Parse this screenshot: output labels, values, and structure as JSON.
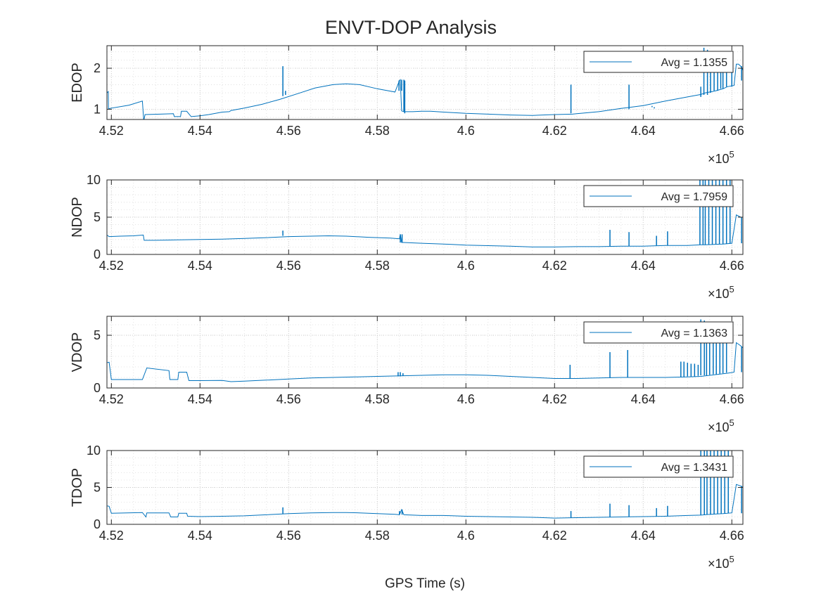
{
  "figure": {
    "title": "ENVT-DOP Analysis",
    "xlabel": "GPS Time (s)",
    "exponent_base": "×10",
    "exponent_power": "5"
  },
  "colors": {
    "series": "#0072BD",
    "axes": "#262626",
    "grid": "#dcdcdc",
    "background": "#ffffff"
  },
  "chart_data": [
    {
      "type": "line",
      "ylabel": "EDOP",
      "legend": "Avg = 1.1355",
      "legend_position": "top-right",
      "grid": true,
      "minor_grid": true,
      "xlim": [
        451900,
        466250
      ],
      "ylim": [
        0.75,
        2.55
      ],
      "xticks": [
        452000,
        454000,
        456000,
        458000,
        460000,
        462000,
        464000,
        466000
      ],
      "xtick_labels": [
        "4.52",
        "4.54",
        "4.56",
        "4.58",
        "4.6",
        "4.62",
        "4.64",
        "4.66"
      ],
      "yticks": [
        1,
        2
      ],
      "ytick_labels": [
        "1",
        "2"
      ],
      "series": [
        {
          "x": [
            451900,
            451930,
            451935,
            451960,
            452400,
            452700,
            452730,
            452760,
            453100,
            453400,
            453420,
            453560,
            453580,
            453700,
            453800,
            454000,
            454200,
            454500,
            454660,
            454700,
            455000,
            455400,
            455800,
            456200,
            456600,
            457000,
            457300,
            457600,
            458000,
            458400,
            458500,
            458520,
            458550,
            458600,
            458800,
            459000,
            459200,
            459500,
            460000,
            460500,
            461000,
            461500,
            462000,
            462400,
            462500,
            463000,
            463500,
            464000,
            464500,
            465000,
            465300,
            465400,
            465600,
            465800,
            465900,
            466050,
            466100,
            466150,
            466200,
            466250
          ],
          "y": [
            1.4,
            1.43,
            1.0,
            1.02,
            1.1,
            1.2,
            0.72,
            0.87,
            0.88,
            0.89,
            0.82,
            0.82,
            0.95,
            0.95,
            0.82,
            0.84,
            0.87,
            0.93,
            0.94,
            0.97,
            1.03,
            1.12,
            1.24,
            1.38,
            1.52,
            1.6,
            1.62,
            1.6,
            1.5,
            1.42,
            1.7,
            1.72,
            0.96,
            0.94,
            0.94,
            0.95,
            0.95,
            0.93,
            0.9,
            0.88,
            0.86,
            0.85,
            0.87,
            0.88,
            0.89,
            0.94,
            1.02,
            1.09,
            1.2,
            1.3,
            1.36,
            1.4,
            1.44,
            1.5,
            1.55,
            1.58,
            2.1,
            2.1,
            2.05,
            1.95
          ]
        }
      ],
      "spikes": [
        [
          455870,
          1.32,
          2.05
        ],
        [
          455930,
          1.35,
          1.45
        ],
        [
          458490,
          1.45,
          1.7
        ],
        [
          458550,
          1.45,
          1.72
        ],
        [
          458600,
          0.95,
          1.72
        ],
        [
          458620,
          0.9,
          1.7
        ],
        [
          462370,
          0.9,
          1.6
        ],
        [
          463680,
          1.0,
          1.6
        ],
        [
          464200,
          1.05,
          1.08
        ],
        [
          464250,
          1.05,
          1.02
        ],
        [
          465300,
          1.3,
          1.55
        ],
        [
          465370,
          1.35,
          2.5
        ],
        [
          465450,
          1.35,
          2.45
        ],
        [
          465520,
          1.4,
          2.1
        ],
        [
          465600,
          1.45,
          2.3
        ],
        [
          465680,
          1.45,
          2.1
        ],
        [
          465750,
          1.5,
          2.2
        ],
        [
          465800,
          1.5,
          2.1
        ],
        [
          465880,
          1.55,
          2.15
        ],
        [
          466000,
          1.55,
          2.1
        ],
        [
          466220,
          1.7,
          2.05
        ]
      ]
    },
    {
      "type": "line",
      "ylabel": "NDOP",
      "legend": "Avg = 1.7959",
      "legend_position": "top-right",
      "grid": true,
      "minor_grid": true,
      "xlim": [
        451900,
        466250
      ],
      "ylim": [
        0,
        10
      ],
      "xticks": [
        452000,
        454000,
        456000,
        458000,
        460000,
        462000,
        464000,
        466000
      ],
      "xtick_labels": [
        "4.52",
        "4.54",
        "4.56",
        "4.58",
        "4.6",
        "4.62",
        "4.64",
        "4.66"
      ],
      "yticks": [
        0,
        5,
        10
      ],
      "ytick_labels": [
        "0",
        "5",
        "10"
      ],
      "series": [
        {
          "x": [
            451900,
            451950,
            452200,
            452500,
            452720,
            452740,
            453000,
            453500,
            454000,
            454500,
            455000,
            455500,
            456000,
            456500,
            456900,
            457300,
            457800,
            458300,
            458500,
            458520,
            458550,
            458600,
            459000,
            459500,
            460000,
            461000,
            461500,
            462000,
            462500,
            463000,
            463500,
            464000,
            464500,
            465000,
            465300,
            465400,
            465600,
            465800,
            466000,
            466100,
            466200,
            466250
          ],
          "y": [
            2.6,
            2.4,
            2.45,
            2.5,
            2.6,
            1.9,
            1.9,
            1.95,
            2.0,
            2.05,
            2.15,
            2.25,
            2.4,
            2.45,
            2.5,
            2.45,
            2.3,
            2.2,
            2.1,
            2.7,
            1.6,
            1.6,
            1.5,
            1.4,
            1.25,
            1.1,
            1.0,
            1.0,
            1.05,
            1.05,
            1.1,
            1.1,
            1.2,
            1.2,
            1.3,
            1.3,
            1.35,
            1.4,
            1.5,
            5.3,
            5.0,
            5.0
          ]
        }
      ],
      "spikes": [
        [
          455870,
          2.5,
          3.2
        ],
        [
          458520,
          1.6,
          2.7
        ],
        [
          458560,
          1.6,
          2.7
        ],
        [
          463250,
          1.05,
          3.3
        ],
        [
          463680,
          1.1,
          3.0
        ],
        [
          464300,
          1.2,
          2.5
        ],
        [
          464550,
          1.2,
          3.1
        ],
        [
          465280,
          1.3,
          10
        ],
        [
          465350,
          1.3,
          10
        ],
        [
          465400,
          1.3,
          10
        ],
        [
          465480,
          1.3,
          10
        ],
        [
          465560,
          1.35,
          10
        ],
        [
          465640,
          1.35,
          10
        ],
        [
          465720,
          1.4,
          10
        ],
        [
          465800,
          1.4,
          10
        ],
        [
          465880,
          1.45,
          10
        ],
        [
          465960,
          1.5,
          10
        ],
        [
          466220,
          1.5,
          5.0
        ]
      ]
    },
    {
      "type": "line",
      "ylabel": "VDOP",
      "legend": "Avg = 1.1363",
      "legend_position": "top-right",
      "grid": true,
      "minor_grid": true,
      "xlim": [
        451900,
        466250
      ],
      "ylim": [
        0,
        6.8
      ],
      "xticks": [
        452000,
        454000,
        456000,
        458000,
        460000,
        462000,
        464000,
        466000
      ],
      "xtick_labels": [
        "4.52",
        "4.54",
        "4.56",
        "4.58",
        "4.6",
        "4.62",
        "4.64",
        "4.66"
      ],
      "yticks": [
        0,
        5
      ],
      "ytick_labels": [
        "0",
        "5"
      ],
      "series": [
        {
          "x": [
            451900,
            451950,
            452000,
            452700,
            452800,
            453300,
            453320,
            453500,
            453520,
            453700,
            453750,
            453800,
            454000,
            454500,
            454700,
            455000,
            455500,
            456000,
            456500,
            457000,
            457500,
            458000,
            458500,
            459000,
            459500,
            460000,
            460500,
            461000,
            461500,
            462000,
            462500,
            463000,
            463500,
            464000,
            464500,
            465000,
            465300,
            465500,
            465700,
            465900,
            466050,
            466100,
            466200,
            466250
          ],
          "y": [
            2.4,
            2.45,
            0.8,
            0.8,
            1.9,
            1.65,
            0.8,
            0.8,
            1.5,
            1.5,
            0.7,
            0.7,
            0.7,
            0.72,
            0.6,
            0.65,
            0.75,
            0.85,
            0.95,
            1.0,
            1.05,
            1.1,
            1.15,
            1.2,
            1.25,
            1.25,
            1.2,
            1.1,
            1.0,
            0.9,
            0.9,
            0.95,
            1.0,
            1.0,
            1.0,
            1.05,
            1.1,
            1.2,
            1.3,
            1.4,
            1.5,
            4.3,
            4.0,
            3.8
          ]
        }
      ],
      "spikes": [
        [
          458470,
          1.1,
          1.5
        ],
        [
          458520,
          1.1,
          1.5
        ],
        [
          458580,
          1.15,
          1.4
        ],
        [
          462350,
          0.9,
          2.2
        ],
        [
          463250,
          0.95,
          3.4
        ],
        [
          463650,
          1.0,
          3.6
        ],
        [
          464850,
          1.05,
          2.5
        ],
        [
          464920,
          1.05,
          2.5
        ],
        [
          465000,
          1.1,
          2.4
        ],
        [
          465080,
          1.1,
          2.3
        ],
        [
          465160,
          1.1,
          2.3
        ],
        [
          465240,
          1.15,
          2.2
        ],
        [
          465300,
          1.2,
          6.5
        ],
        [
          465380,
          1.2,
          6.4
        ],
        [
          465430,
          1.2,
          6.3
        ],
        [
          465500,
          1.25,
          6.2
        ],
        [
          465580,
          1.3,
          6.0
        ],
        [
          465650,
          1.3,
          6.0
        ],
        [
          465730,
          1.35,
          5.9
        ],
        [
          465800,
          1.4,
          5.8
        ],
        [
          465880,
          1.45,
          5.7
        ],
        [
          466220,
          1.5,
          3.9
        ]
      ]
    },
    {
      "type": "line",
      "ylabel": "TDOP",
      "legend": "Avg = 1.3431",
      "legend_position": "top-right",
      "grid": true,
      "minor_grid": true,
      "xlim": [
        451900,
        466250
      ],
      "ylim": [
        0,
        10
      ],
      "xticks": [
        452000,
        454000,
        456000,
        458000,
        460000,
        462000,
        464000,
        466000
      ],
      "xtick_labels": [
        "4.52",
        "4.54",
        "4.56",
        "4.58",
        "4.6",
        "4.62",
        "4.64",
        "4.66"
      ],
      "yticks": [
        0,
        5,
        10
      ],
      "ytick_labels": [
        "0",
        "5",
        "10"
      ],
      "series": [
        {
          "x": [
            451900,
            451950,
            452000,
            452700,
            452780,
            452800,
            453300,
            453340,
            453500,
            453520,
            453700,
            453720,
            454000,
            454500,
            455000,
            455500,
            456000,
            456500,
            457000,
            457300,
            457600,
            458000,
            458400,
            458500,
            458550,
            458600,
            459000,
            459500,
            460000,
            460500,
            461000,
            461500,
            462000,
            462500,
            463000,
            463500,
            464000,
            464500,
            465000,
            465300,
            465500,
            465800,
            466000,
            466100,
            466200,
            466250
          ],
          "y": [
            2.5,
            2.45,
            1.5,
            1.6,
            1.0,
            1.55,
            1.55,
            1.0,
            1.0,
            1.5,
            1.5,
            1.1,
            1.05,
            1.1,
            1.15,
            1.3,
            1.45,
            1.55,
            1.6,
            1.6,
            1.55,
            1.45,
            1.35,
            1.3,
            2.0,
            1.3,
            1.2,
            1.2,
            1.1,
            1.05,
            1.0,
            0.95,
            0.85,
            0.9,
            0.95,
            1.0,
            1.05,
            1.1,
            1.2,
            1.25,
            1.35,
            1.45,
            1.55,
            5.4,
            5.2,
            5.0
          ]
        }
      ],
      "spikes": [
        [
          455870,
          1.4,
          2.3
        ],
        [
          458500,
          1.3,
          1.8
        ],
        [
          458560,
          1.3,
          2.0
        ],
        [
          462370,
          0.9,
          1.8
        ],
        [
          463250,
          0.95,
          2.8
        ],
        [
          463680,
          1.0,
          2.6
        ],
        [
          464300,
          1.1,
          2.2
        ],
        [
          464550,
          1.1,
          2.5
        ],
        [
          465300,
          1.25,
          10
        ],
        [
          465380,
          1.25,
          10
        ],
        [
          465440,
          1.3,
          10
        ],
        [
          465520,
          1.3,
          10
        ],
        [
          465600,
          1.35,
          10
        ],
        [
          465680,
          1.4,
          10
        ],
        [
          465760,
          1.45,
          10
        ],
        [
          465840,
          1.45,
          10
        ],
        [
          465920,
          1.5,
          10
        ],
        [
          466220,
          1.5,
          5.2
        ]
      ]
    }
  ]
}
